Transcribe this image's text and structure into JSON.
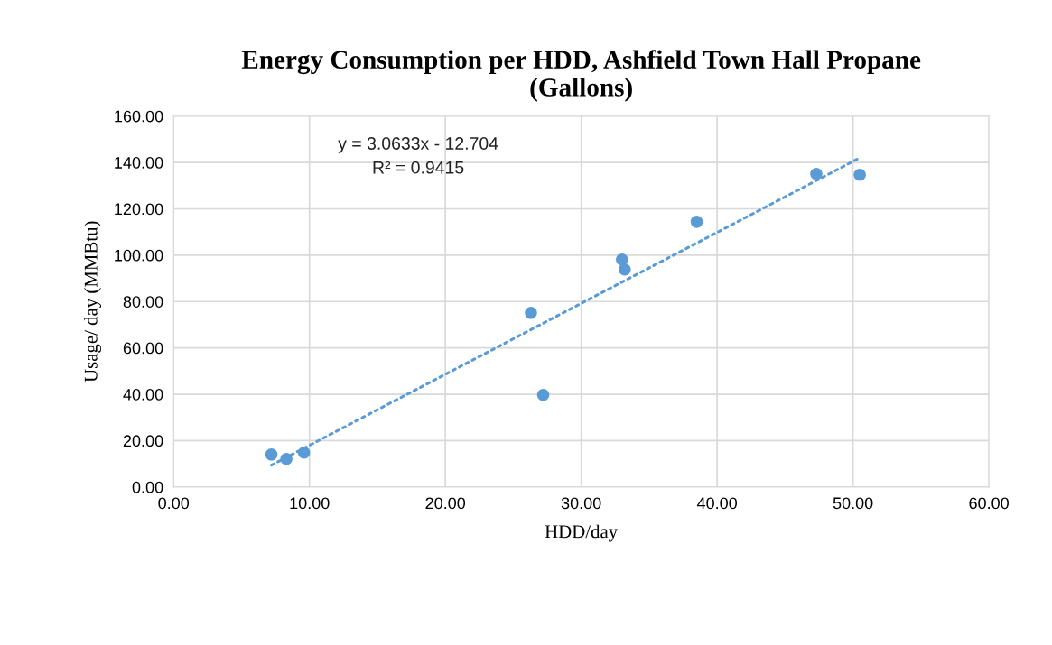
{
  "chart_data": {
    "type": "scatter",
    "title": "Energy Consumption per HDD, Ashfield Town Hall Propane\n(Gallons)",
    "xlabel": "HDD/day",
    "ylabel": "Usage/ day (MMBtu)",
    "annotations": [
      "y = 3.0633x - 12.704",
      "R² = 0.9415"
    ],
    "series": [
      {
        "color": "#5b9bd5",
        "marker": "circle",
        "x": [
          7.2,
          8.3,
          9.6,
          26.3,
          27.2,
          33.0,
          33.2,
          38.5,
          47.3,
          50.5
        ],
        "values": [
          14.0,
          12.1,
          14.8,
          75.1,
          39.7,
          98.1,
          93.8,
          114.4,
          135.1,
          134.7
        ]
      },
      {
        "type": "line",
        "color": "#5b9bd5",
        "line_style": "dotted",
        "x": [
          7.2,
          50.5
        ],
        "values": [
          9.4,
          142.0
        ]
      }
    ],
    "xlim": [
      0,
      60
    ],
    "ylim": [
      0,
      160
    ],
    "xticks": [
      {
        "value": 0,
        "label": "0.00"
      },
      {
        "value": 10,
        "label": "10.00"
      },
      {
        "value": 20,
        "label": "20.00"
      },
      {
        "value": 30,
        "label": "30.00"
      },
      {
        "value": 40,
        "label": "40.00"
      },
      {
        "value": 50,
        "label": "50.00"
      },
      {
        "value": 60,
        "label": "60.00"
      }
    ],
    "yticks": [
      {
        "value": 0,
        "label": "0.00"
      },
      {
        "value": 20,
        "label": "20.00"
      },
      {
        "value": 40,
        "label": "40.00"
      },
      {
        "value": 60,
        "label": "60.00"
      },
      {
        "value": 80,
        "label": "80.00"
      },
      {
        "value": 100,
        "label": "100.00"
      },
      {
        "value": 120,
        "label": "120.00"
      },
      {
        "value": 140,
        "label": "140.00"
      },
      {
        "value": 160,
        "label": "160.00"
      }
    ],
    "grid": true
  }
}
